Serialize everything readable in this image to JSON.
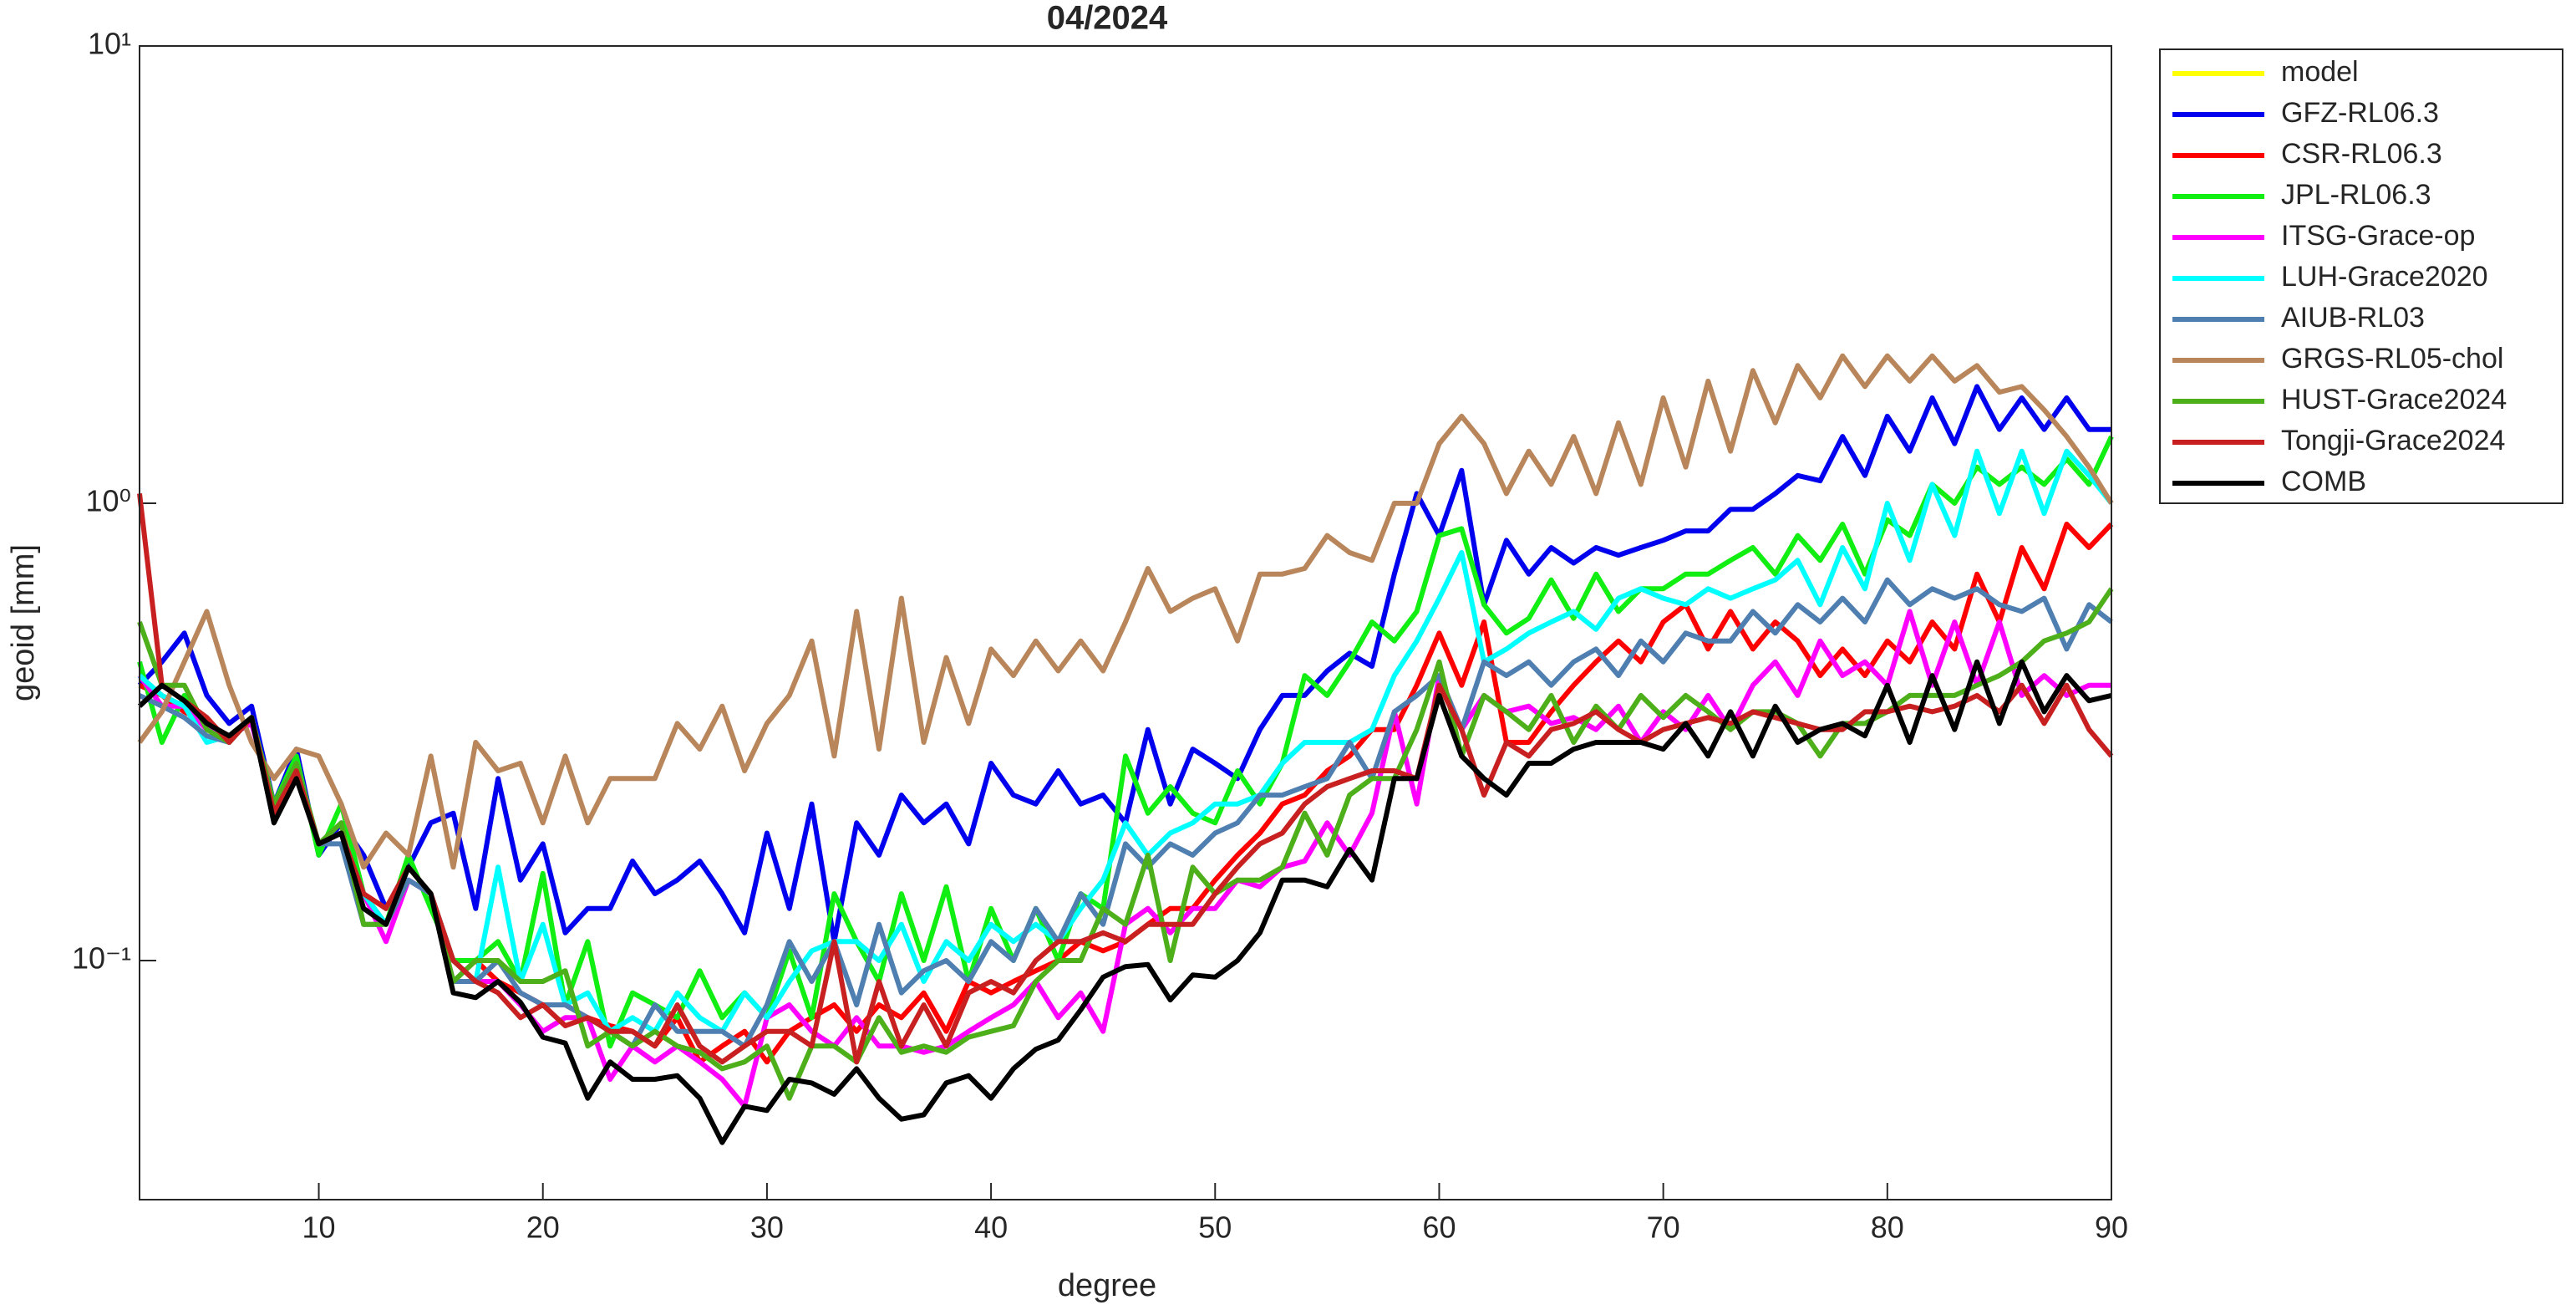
{
  "chart_data": {
    "type": "line",
    "title": "04/2024",
    "xlabel": "degree",
    "ylabel": "geoid [mm]",
    "xlim": [
      2,
      90
    ],
    "ylim": [
      0.03,
      10
    ],
    "yscale": "log",
    "xticks": [
      10,
      20,
      30,
      40,
      50,
      60,
      70,
      80,
      90
    ],
    "yticks": [
      {
        "value": 0.1,
        "label": "10⁻¹"
      },
      {
        "value": 1,
        "label": "10⁰"
      },
      {
        "value": 10,
        "label": "10¹"
      }
    ],
    "legend": "outside-right",
    "x": [
      2,
      3,
      4,
      5,
      6,
      7,
      8,
      9,
      10,
      11,
      12,
      13,
      14,
      15,
      16,
      17,
      18,
      19,
      20,
      21,
      22,
      23,
      24,
      25,
      26,
      27,
      28,
      29,
      30,
      31,
      32,
      33,
      34,
      35,
      36,
      37,
      38,
      39,
      40,
      41,
      42,
      43,
      44,
      45,
      46,
      47,
      48,
      49,
      50,
      51,
      52,
      53,
      54,
      55,
      56,
      57,
      58,
      59,
      60,
      61,
      62,
      63,
      64,
      65,
      66,
      67,
      68,
      69,
      70,
      71,
      72,
      73,
      74,
      75,
      76,
      77,
      78,
      79,
      80,
      81,
      82,
      83,
      84,
      85,
      86,
      87,
      88,
      89,
      90
    ],
    "series": [
      {
        "name": "model",
        "color": "#ffff00",
        "values": [
          null,
          null,
          null,
          null,
          null,
          null,
          null,
          null,
          null,
          null,
          null,
          null,
          null,
          null,
          null,
          null,
          null,
          null,
          null,
          null,
          null,
          null,
          null,
          null,
          null,
          null,
          null,
          null,
          null,
          null,
          null,
          null,
          null,
          null,
          null,
          null,
          null,
          null,
          null,
          null,
          null,
          null,
          null,
          null,
          null,
          null,
          null,
          null,
          null,
          null,
          null,
          null,
          null,
          null,
          null,
          null,
          null,
          null,
          null,
          null,
          null,
          null,
          null,
          null,
          null,
          null,
          null,
          null,
          null,
          null,
          null,
          null,
          null,
          null,
          null,
          null,
          null,
          null,
          null,
          null,
          null,
          null,
          null,
          null,
          null,
          null,
          null,
          null,
          null
        ]
      },
      {
        "name": "GFZ-RL06.3",
        "color": "#0000ee",
        "values": [
          0.4,
          0.45,
          0.52,
          0.38,
          0.33,
          0.36,
          0.22,
          0.29,
          0.17,
          0.2,
          0.17,
          0.13,
          0.16,
          0.2,
          0.21,
          0.13,
          0.25,
          0.15,
          0.18,
          0.115,
          0.13,
          0.13,
          0.165,
          0.14,
          0.15,
          0.165,
          0.14,
          0.115,
          0.19,
          0.13,
          0.22,
          0.11,
          0.2,
          0.17,
          0.23,
          0.2,
          0.22,
          0.18,
          0.27,
          0.23,
          0.22,
          0.26,
          0.22,
          0.23,
          0.2,
          0.32,
          0.22,
          0.29,
          0.27,
          0.25,
          0.32,
          0.38,
          0.38,
          0.43,
          0.47,
          0.44,
          0.7,
          1.05,
          0.85,
          1.18,
          0.6,
          0.83,
          0.7,
          0.8,
          0.74,
          0.8,
          0.77,
          0.8,
          0.83,
          0.87,
          0.87,
          0.97,
          0.97,
          1.05,
          1.15,
          1.12,
          1.4,
          1.15,
          1.55,
          1.3,
          1.7,
          1.35,
          1.8,
          1.45,
          1.7,
          1.45,
          1.7,
          1.45,
          1.45
        ]
      },
      {
        "name": "CSR-RL06.3",
        "color": "#ff0000",
        "values": [
          0.4,
          0.38,
          0.35,
          0.33,
          0.31,
          0.34,
          0.21,
          0.26,
          0.18,
          0.19,
          0.14,
          0.13,
          0.16,
          0.14,
          0.1,
          0.1,
          0.09,
          0.085,
          0.08,
          0.08,
          0.075,
          0.072,
          0.07,
          0.065,
          0.075,
          0.06,
          0.065,
          0.07,
          0.06,
          0.07,
          0.075,
          0.08,
          0.07,
          0.08,
          0.075,
          0.085,
          0.07,
          0.09,
          0.085,
          0.09,
          0.095,
          0.1,
          0.11,
          0.105,
          0.11,
          0.12,
          0.13,
          0.13,
          0.15,
          0.17,
          0.19,
          0.22,
          0.23,
          0.26,
          0.28,
          0.32,
          0.32,
          0.4,
          0.52,
          0.4,
          0.55,
          0.3,
          0.3,
          0.35,
          0.4,
          0.45,
          0.5,
          0.45,
          0.55,
          0.6,
          0.48,
          0.58,
          0.48,
          0.55,
          0.5,
          0.42,
          0.48,
          0.42,
          0.5,
          0.45,
          0.55,
          0.48,
          0.7,
          0.55,
          0.8,
          0.65,
          0.9,
          0.8,
          0.9
        ]
      },
      {
        "name": "JPL-RL06.3",
        "color": "#11ee11",
        "values": [
          0.45,
          0.3,
          0.38,
          0.33,
          0.3,
          0.34,
          0.22,
          0.28,
          0.17,
          0.22,
          0.14,
          0.12,
          0.17,
          0.13,
          0.1,
          0.1,
          0.11,
          0.09,
          0.155,
          0.08,
          0.11,
          0.065,
          0.085,
          0.08,
          0.075,
          0.095,
          0.075,
          0.085,
          0.075,
          0.105,
          0.075,
          0.14,
          0.11,
          0.09,
          0.14,
          0.1,
          0.145,
          0.09,
          0.13,
          0.1,
          0.13,
          0.1,
          0.14,
          0.13,
          0.28,
          0.21,
          0.24,
          0.21,
          0.2,
          0.26,
          0.22,
          0.27,
          0.42,
          0.38,
          0.45,
          0.55,
          0.5,
          0.58,
          0.85,
          0.88,
          0.6,
          0.52,
          0.56,
          0.68,
          0.56,
          0.7,
          0.58,
          0.65,
          0.65,
          0.7,
          0.7,
          0.75,
          0.8,
          0.7,
          0.85,
          0.75,
          0.9,
          0.7,
          0.92,
          0.85,
          1.1,
          1.0,
          1.2,
          1.1,
          1.2,
          1.1,
          1.25,
          1.1,
          1.4
        ]
      },
      {
        "name": "ITSG-Grace-op",
        "color": "#ff00ff",
        "values": [
          0.42,
          0.36,
          0.36,
          0.32,
          0.31,
          0.33,
          0.22,
          0.26,
          0.18,
          0.19,
          0.14,
          0.11,
          0.15,
          0.14,
          0.09,
          0.09,
          0.09,
          0.08,
          0.07,
          0.075,
          0.075,
          0.055,
          0.065,
          0.06,
          0.065,
          0.06,
          0.055,
          0.048,
          0.075,
          0.08,
          0.07,
          0.065,
          0.075,
          0.065,
          0.065,
          0.063,
          0.065,
          0.07,
          0.075,
          0.08,
          0.09,
          0.075,
          0.085,
          0.07,
          0.12,
          0.13,
          0.115,
          0.13,
          0.13,
          0.15,
          0.145,
          0.16,
          0.165,
          0.2,
          0.17,
          0.21,
          0.35,
          0.22,
          0.42,
          0.32,
          0.38,
          0.35,
          0.36,
          0.33,
          0.34,
          0.32,
          0.36,
          0.3,
          0.35,
          0.32,
          0.38,
          0.32,
          0.4,
          0.45,
          0.38,
          0.5,
          0.42,
          0.45,
          0.4,
          0.58,
          0.4,
          0.55,
          0.4,
          0.55,
          0.38,
          0.42,
          0.38,
          0.4,
          0.4
        ]
      },
      {
        "name": "LUH-Grace2020",
        "color": "#00ffff",
        "values": [
          0.42,
          0.38,
          0.36,
          0.3,
          0.31,
          0.34,
          0.22,
          0.27,
          0.18,
          0.19,
          0.14,
          0.12,
          0.16,
          0.14,
          0.1,
          0.09,
          0.16,
          0.09,
          0.12,
          0.08,
          0.085,
          0.07,
          0.075,
          0.07,
          0.085,
          0.075,
          0.07,
          0.085,
          0.075,
          0.09,
          0.105,
          0.11,
          0.11,
          0.1,
          0.12,
          0.09,
          0.11,
          0.1,
          0.12,
          0.11,
          0.12,
          0.11,
          0.13,
          0.15,
          0.2,
          0.17,
          0.19,
          0.2,
          0.22,
          0.22,
          0.23,
          0.27,
          0.3,
          0.3,
          0.3,
          0.32,
          0.42,
          0.5,
          0.62,
          0.78,
          0.45,
          0.48,
          0.52,
          0.55,
          0.58,
          0.53,
          0.62,
          0.65,
          0.62,
          0.6,
          0.65,
          0.62,
          0.65,
          0.68,
          0.75,
          0.6,
          0.8,
          0.65,
          1.0,
          0.75,
          1.1,
          0.85,
          1.3,
          0.95,
          1.3,
          0.95,
          1.3,
          1.15,
          1.0
        ]
      },
      {
        "name": "AIUB-RL03",
        "color": "#4f7fb0",
        "values": [
          0.38,
          0.36,
          0.34,
          0.31,
          0.3,
          0.34,
          0.2,
          0.26,
          0.18,
          0.18,
          0.12,
          0.12,
          0.15,
          0.14,
          0.09,
          0.09,
          0.1,
          0.085,
          0.08,
          0.08,
          0.075,
          0.07,
          0.065,
          0.08,
          0.07,
          0.07,
          0.07,
          0.065,
          0.08,
          0.11,
          0.09,
          0.11,
          0.08,
          0.12,
          0.085,
          0.095,
          0.1,
          0.09,
          0.11,
          0.1,
          0.13,
          0.11,
          0.14,
          0.12,
          0.18,
          0.16,
          0.18,
          0.17,
          0.19,
          0.2,
          0.23,
          0.23,
          0.24,
          0.25,
          0.3,
          0.25,
          0.35,
          0.38,
          0.42,
          0.32,
          0.45,
          0.42,
          0.45,
          0.4,
          0.45,
          0.48,
          0.42,
          0.5,
          0.45,
          0.52,
          0.5,
          0.5,
          0.58,
          0.52,
          0.6,
          0.55,
          0.62,
          0.55,
          0.68,
          0.6,
          0.65,
          0.62,
          0.65,
          0.6,
          0.58,
          0.62,
          0.48,
          0.6,
          0.55
        ]
      },
      {
        "name": "GRGS-RL05-chol",
        "color": "#b8865a",
        "values": [
          0.3,
          0.35,
          0.45,
          0.58,
          0.4,
          0.3,
          0.25,
          0.29,
          0.28,
          0.22,
          0.16,
          0.19,
          0.17,
          0.28,
          0.16,
          0.3,
          0.26,
          0.27,
          0.2,
          0.28,
          0.2,
          0.25,
          0.25,
          0.25,
          0.33,
          0.29,
          0.36,
          0.26,
          0.33,
          0.38,
          0.5,
          0.28,
          0.58,
          0.29,
          0.62,
          0.3,
          0.46,
          0.33,
          0.48,
          0.42,
          0.5,
          0.43,
          0.5,
          0.43,
          0.55,
          0.72,
          0.58,
          0.62,
          0.65,
          0.5,
          0.7,
          0.7,
          0.72,
          0.85,
          0.78,
          0.75,
          1.0,
          1.0,
          1.35,
          1.55,
          1.35,
          1.05,
          1.3,
          1.1,
          1.4,
          1.05,
          1.5,
          1.1,
          1.7,
          1.2,
          1.85,
          1.3,
          1.95,
          1.5,
          2.0,
          1.7,
          2.1,
          1.8,
          2.1,
          1.85,
          2.1,
          1.85,
          2.0,
          1.75,
          1.8,
          1.6,
          1.4,
          1.2,
          1.0
        ]
      },
      {
        "name": "HUST-Grace2024",
        "color": "#4daf1a",
        "values": [
          0.55,
          0.4,
          0.4,
          0.32,
          0.3,
          0.34,
          0.22,
          0.27,
          0.18,
          0.2,
          0.12,
          0.12,
          0.16,
          0.14,
          0.09,
          0.1,
          0.1,
          0.09,
          0.09,
          0.095,
          0.065,
          0.07,
          0.065,
          0.07,
          0.065,
          0.063,
          0.058,
          0.06,
          0.065,
          0.05,
          0.065,
          0.065,
          0.06,
          0.075,
          0.063,
          0.065,
          0.063,
          0.068,
          0.07,
          0.072,
          0.09,
          0.1,
          0.1,
          0.13,
          0.12,
          0.17,
          0.1,
          0.16,
          0.14,
          0.15,
          0.15,
          0.16,
          0.21,
          0.17,
          0.23,
          0.25,
          0.25,
          0.32,
          0.45,
          0.28,
          0.38,
          0.35,
          0.32,
          0.38,
          0.3,
          0.36,
          0.32,
          0.38,
          0.34,
          0.38,
          0.35,
          0.32,
          0.35,
          0.35,
          0.33,
          0.28,
          0.33,
          0.33,
          0.35,
          0.38,
          0.38,
          0.38,
          0.4,
          0.42,
          0.45,
          0.5,
          0.52,
          0.55,
          0.65
        ]
      },
      {
        "name": "Tongji-Grace2024",
        "color": "#c82020",
        "values": [
          1.05,
          0.4,
          0.37,
          0.34,
          0.3,
          0.34,
          0.21,
          0.26,
          0.18,
          0.19,
          0.14,
          0.13,
          0.16,
          0.14,
          0.1,
          0.09,
          0.085,
          0.075,
          0.08,
          0.072,
          0.075,
          0.07,
          0.07,
          0.065,
          0.08,
          0.065,
          0.06,
          0.065,
          0.07,
          0.07,
          0.065,
          0.11,
          0.06,
          0.09,
          0.065,
          0.08,
          0.065,
          0.085,
          0.09,
          0.085,
          0.1,
          0.11,
          0.11,
          0.115,
          0.11,
          0.12,
          0.12,
          0.12,
          0.14,
          0.16,
          0.18,
          0.19,
          0.22,
          0.24,
          0.25,
          0.26,
          0.26,
          0.25,
          0.4,
          0.32,
          0.23,
          0.3,
          0.28,
          0.32,
          0.33,
          0.35,
          0.32,
          0.3,
          0.32,
          0.33,
          0.34,
          0.33,
          0.35,
          0.34,
          0.33,
          0.32,
          0.32,
          0.35,
          0.35,
          0.36,
          0.35,
          0.36,
          0.38,
          0.35,
          0.4,
          0.33,
          0.4,
          0.32,
          0.28
        ]
      },
      {
        "name": "COMB",
        "color": "#000000",
        "values": [
          0.36,
          0.4,
          0.37,
          0.33,
          0.31,
          0.34,
          0.2,
          0.25,
          0.18,
          0.19,
          0.13,
          0.12,
          0.16,
          0.14,
          0.085,
          0.083,
          0.09,
          0.081,
          0.068,
          0.066,
          0.05,
          0.06,
          0.055,
          0.055,
          0.056,
          0.05,
          0.04,
          0.048,
          0.047,
          0.055,
          0.054,
          0.051,
          0.058,
          0.05,
          0.045,
          0.046,
          0.054,
          0.056,
          0.05,
          0.058,
          0.064,
          0.067,
          0.078,
          0.092,
          0.097,
          0.098,
          0.082,
          0.093,
          0.092,
          0.1,
          0.115,
          0.15,
          0.15,
          0.145,
          0.175,
          0.15,
          0.25,
          0.25,
          0.38,
          0.28,
          0.25,
          0.23,
          0.27,
          0.27,
          0.29,
          0.3,
          0.3,
          0.3,
          0.29,
          0.33,
          0.28,
          0.35,
          0.28,
          0.36,
          0.3,
          0.32,
          0.33,
          0.31,
          0.4,
          0.3,
          0.42,
          0.32,
          0.45,
          0.33,
          0.45,
          0.35,
          0.42,
          0.37,
          0.38
        ]
      }
    ]
  }
}
